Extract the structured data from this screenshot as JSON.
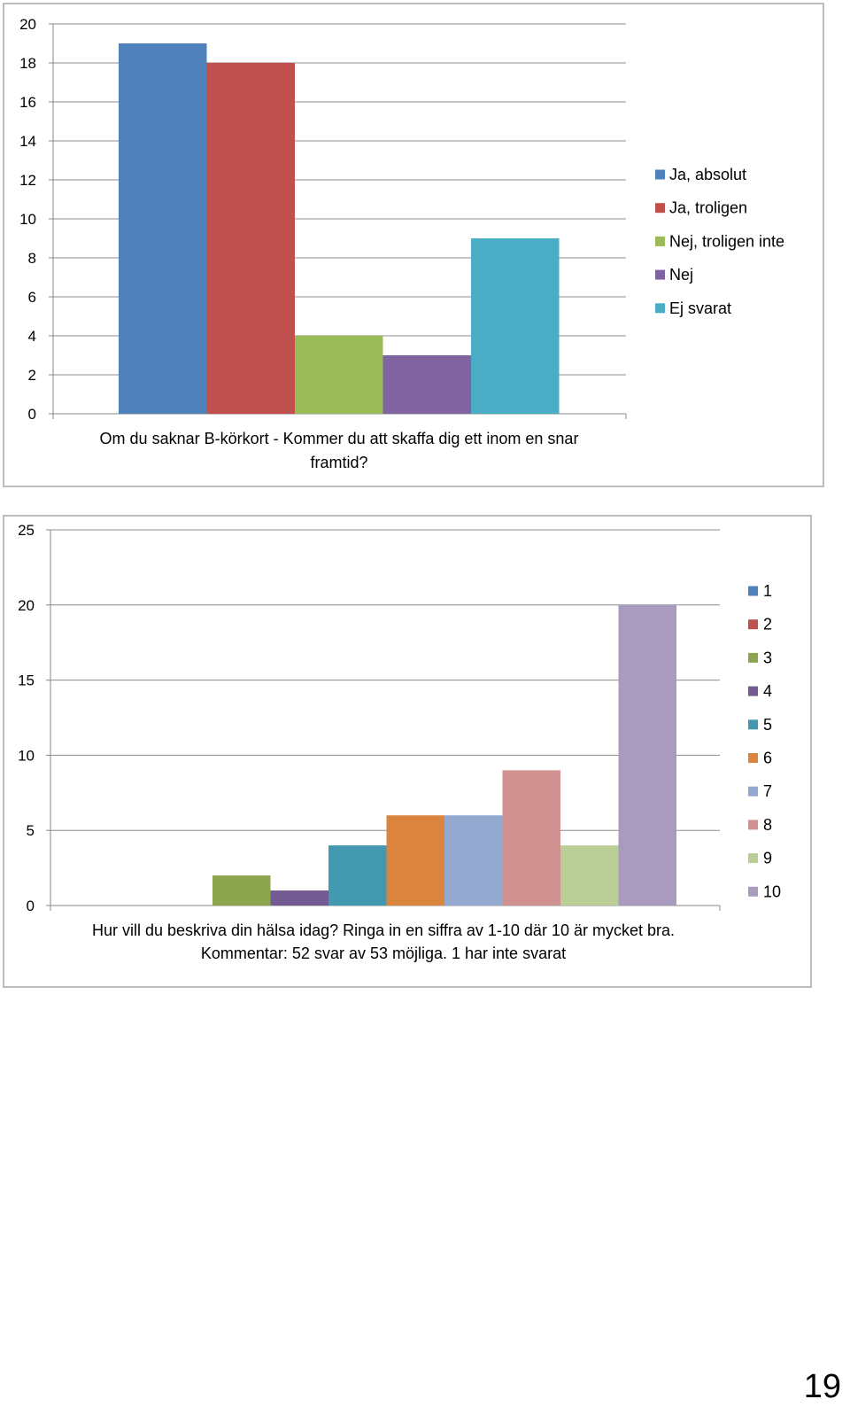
{
  "page_number": "19",
  "chart_data": [
    {
      "type": "bar",
      "title": "Om du saknar B-körkort - Kommer du att skaffa dig ett inom en snar framtid?",
      "caption_lines": [
        "Om du saknar B-körkort - Kommer du att skaffa dig ett inom en snar",
        "framtid?"
      ],
      "ylim": [
        0,
        20
      ],
      "yticks": [
        0,
        2,
        4,
        6,
        8,
        10,
        12,
        14,
        16,
        18,
        20
      ],
      "grid": true,
      "legend_position": "right",
      "series": [
        {
          "name": "Ja, absolut",
          "value": 19,
          "color": "#4f81bd"
        },
        {
          "name": "Ja, troligen",
          "value": 18,
          "color": "#c0504d"
        },
        {
          "name": "Nej, troligen inte",
          "value": 4,
          "color": "#9bbb59"
        },
        {
          "name": "Nej",
          "value": 3,
          "color": "#8064a2"
        },
        {
          "name": "Ej svarat",
          "value": 9,
          "color": "#4bacc6"
        }
      ]
    },
    {
      "type": "bar",
      "title": "Hur vill du beskriva din hälsa idag? Ringa in en siffra av 1-10 där 10 är mycket bra. Kommentar: 52 svar av 53 möjliga. 1 har inte svarat",
      "caption_lines": [
        "Hur vill du beskriva din hälsa idag? Ringa in en siffra av 1-10 där 10 är mycket bra.",
        "Kommentar: 52 svar av 53 möjliga. 1 har inte svarat"
      ],
      "ylim": [
        0,
        25
      ],
      "yticks": [
        0,
        5,
        10,
        15,
        20,
        25
      ],
      "grid": true,
      "legend_position": "right",
      "series": [
        {
          "name": "1",
          "value": 0,
          "color": "#4f81bd"
        },
        {
          "name": "2",
          "value": 0,
          "color": "#c0504d"
        },
        {
          "name": "3",
          "value": 2,
          "color": "#8ba54f"
        },
        {
          "name": "4",
          "value": 1,
          "color": "#735a93"
        },
        {
          "name": "5",
          "value": 4,
          "color": "#4198af"
        },
        {
          "name": "6",
          "value": 6,
          "color": "#db843d"
        },
        {
          "name": "7",
          "value": 6,
          "color": "#93a9cf"
        },
        {
          "name": "8",
          "value": 9,
          "color": "#d09191"
        },
        {
          "name": "9",
          "value": 4,
          "color": "#b9cd96"
        },
        {
          "name": "10",
          "value": 20,
          "color": "#a99bbd"
        }
      ]
    }
  ]
}
